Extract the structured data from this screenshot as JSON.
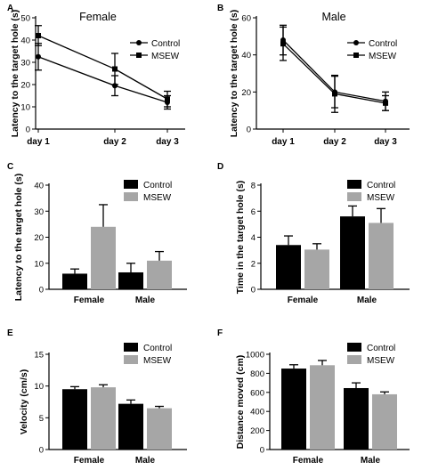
{
  "chart_data": [
    {
      "panel": "A",
      "type": "line",
      "title": "Female",
      "xlabel": "",
      "ylabel": "Latency to  the target hole (s)",
      "categories": [
        "day 1",
        "day 2",
        "day 3"
      ],
      "ylim": [
        0,
        50
      ],
      "yticks": [
        0,
        10,
        20,
        30,
        40,
        50
      ],
      "legend": "top-right",
      "series": [
        {
          "name": "Control",
          "marker": "circle",
          "values": [
            32.5,
            19.5,
            12
          ],
          "errors": [
            6,
            4.5,
            3
          ]
        },
        {
          "name": "MSEW",
          "marker": "square",
          "values": [
            42,
            27,
            13.5
          ],
          "errors": [
            4.5,
            7,
            3.5
          ]
        }
      ]
    },
    {
      "panel": "B",
      "type": "line",
      "title": "Male",
      "xlabel": "",
      "ylabel": "Latency to  the target hole (s)",
      "categories": [
        "day 1",
        "day 2",
        "day 3"
      ],
      "ylim": [
        0,
        60
      ],
      "yticks": [
        0,
        20,
        40,
        60
      ],
      "legend": "top-right",
      "series": [
        {
          "name": "Control",
          "marker": "circle",
          "values": [
            48,
            20,
            15
          ],
          "errors": [
            8,
            8.5,
            5
          ]
        },
        {
          "name": "MSEW",
          "marker": "square",
          "values": [
            46,
            19,
            14
          ],
          "errors": [
            9,
            10,
            4
          ]
        }
      ]
    },
    {
      "panel": "C",
      "type": "bar",
      "title": "",
      "xlabel": "",
      "ylabel": "Latency to  the target hole (s)",
      "categories": [
        "Female",
        "Male"
      ],
      "ylim": [
        0,
        40
      ],
      "yticks": [
        0,
        10,
        20,
        30,
        40
      ],
      "legend": "top-right",
      "series": [
        {
          "name": "Control",
          "color": "#000000",
          "values": [
            6,
            6.5
          ],
          "errors": [
            1.8,
            3.5
          ]
        },
        {
          "name": "MSEW",
          "color": "#a6a6a6",
          "values": [
            24,
            11
          ],
          "errors": [
            8.5,
            3.5
          ]
        }
      ]
    },
    {
      "panel": "D",
      "type": "bar",
      "title": "",
      "xlabel": "",
      "ylabel": "Time in the target hole (s)",
      "categories": [
        "Female",
        "Male"
      ],
      "ylim": [
        0,
        8
      ],
      "yticks": [
        0,
        2,
        4,
        6,
        8
      ],
      "legend": "top-right",
      "series": [
        {
          "name": "Control",
          "color": "#000000",
          "values": [
            3.4,
            5.6
          ],
          "errors": [
            0.7,
            0.8
          ]
        },
        {
          "name": "MSEW",
          "color": "#a6a6a6",
          "values": [
            3.05,
            5.1
          ],
          "errors": [
            0.45,
            1.1
          ]
        }
      ]
    },
    {
      "panel": "E",
      "type": "bar",
      "title": "",
      "xlabel": "",
      "ylabel": "Velocity (cm/s)",
      "categories": [
        "Female",
        "Male"
      ],
      "ylim": [
        0,
        15
      ],
      "yticks": [
        0,
        5,
        10,
        15
      ],
      "legend": "top-right",
      "series": [
        {
          "name": "Control",
          "color": "#000000",
          "values": [
            9.5,
            7.2
          ],
          "errors": [
            0.4,
            0.6
          ]
        },
        {
          "name": "MSEW",
          "color": "#a6a6a6",
          "values": [
            9.8,
            6.5
          ],
          "errors": [
            0.4,
            0.3
          ]
        }
      ]
    },
    {
      "panel": "F",
      "type": "bar",
      "title": "",
      "xlabel": "",
      "ylabel": "Distance moved (cm)",
      "categories": [
        "Female",
        "Male"
      ],
      "ylim": [
        0,
        1000
      ],
      "yticks": [
        0,
        200,
        400,
        600,
        800,
        1000
      ],
      "legend": "top-right",
      "series": [
        {
          "name": "Control",
          "color": "#000000",
          "values": [
            850,
            645
          ],
          "errors": [
            40,
            55
          ]
        },
        {
          "name": "MSEW",
          "color": "#a6a6a6",
          "values": [
            885,
            580
          ],
          "errors": [
            50,
            25
          ]
        }
      ]
    }
  ]
}
